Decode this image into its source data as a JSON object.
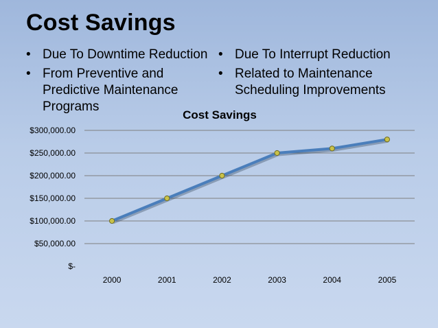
{
  "slide": {
    "title": "Cost Savings",
    "bullets_left": [
      "Due To Downtime Reduction",
      "From Preventive and Predictive Maintenance Programs"
    ],
    "bullets_right": [
      "Due To Interrupt Reduction",
      "Related to Maintenance Scheduling Improvements"
    ],
    "bullet_glyph": "•"
  },
  "chart_data": {
    "type": "line",
    "title": "Cost Savings",
    "categories": [
      "2000",
      "2001",
      "2002",
      "2003",
      "2004",
      "2005"
    ],
    "series": [
      {
        "values": [
          100000,
          150000,
          200000,
          250000,
          260000,
          280000
        ]
      }
    ],
    "y_ticks": [
      "$-",
      "$50,000.00",
      "$100,000.00",
      "$150,000.00",
      "$200,000.00",
      "$250,000.00",
      "$300,000.00"
    ],
    "ylim": [
      0,
      300000
    ],
    "grid": true,
    "colors": {
      "line": "#4a7ebb",
      "marker": "#c9c24a",
      "grid": "#7f7f7f"
    }
  }
}
